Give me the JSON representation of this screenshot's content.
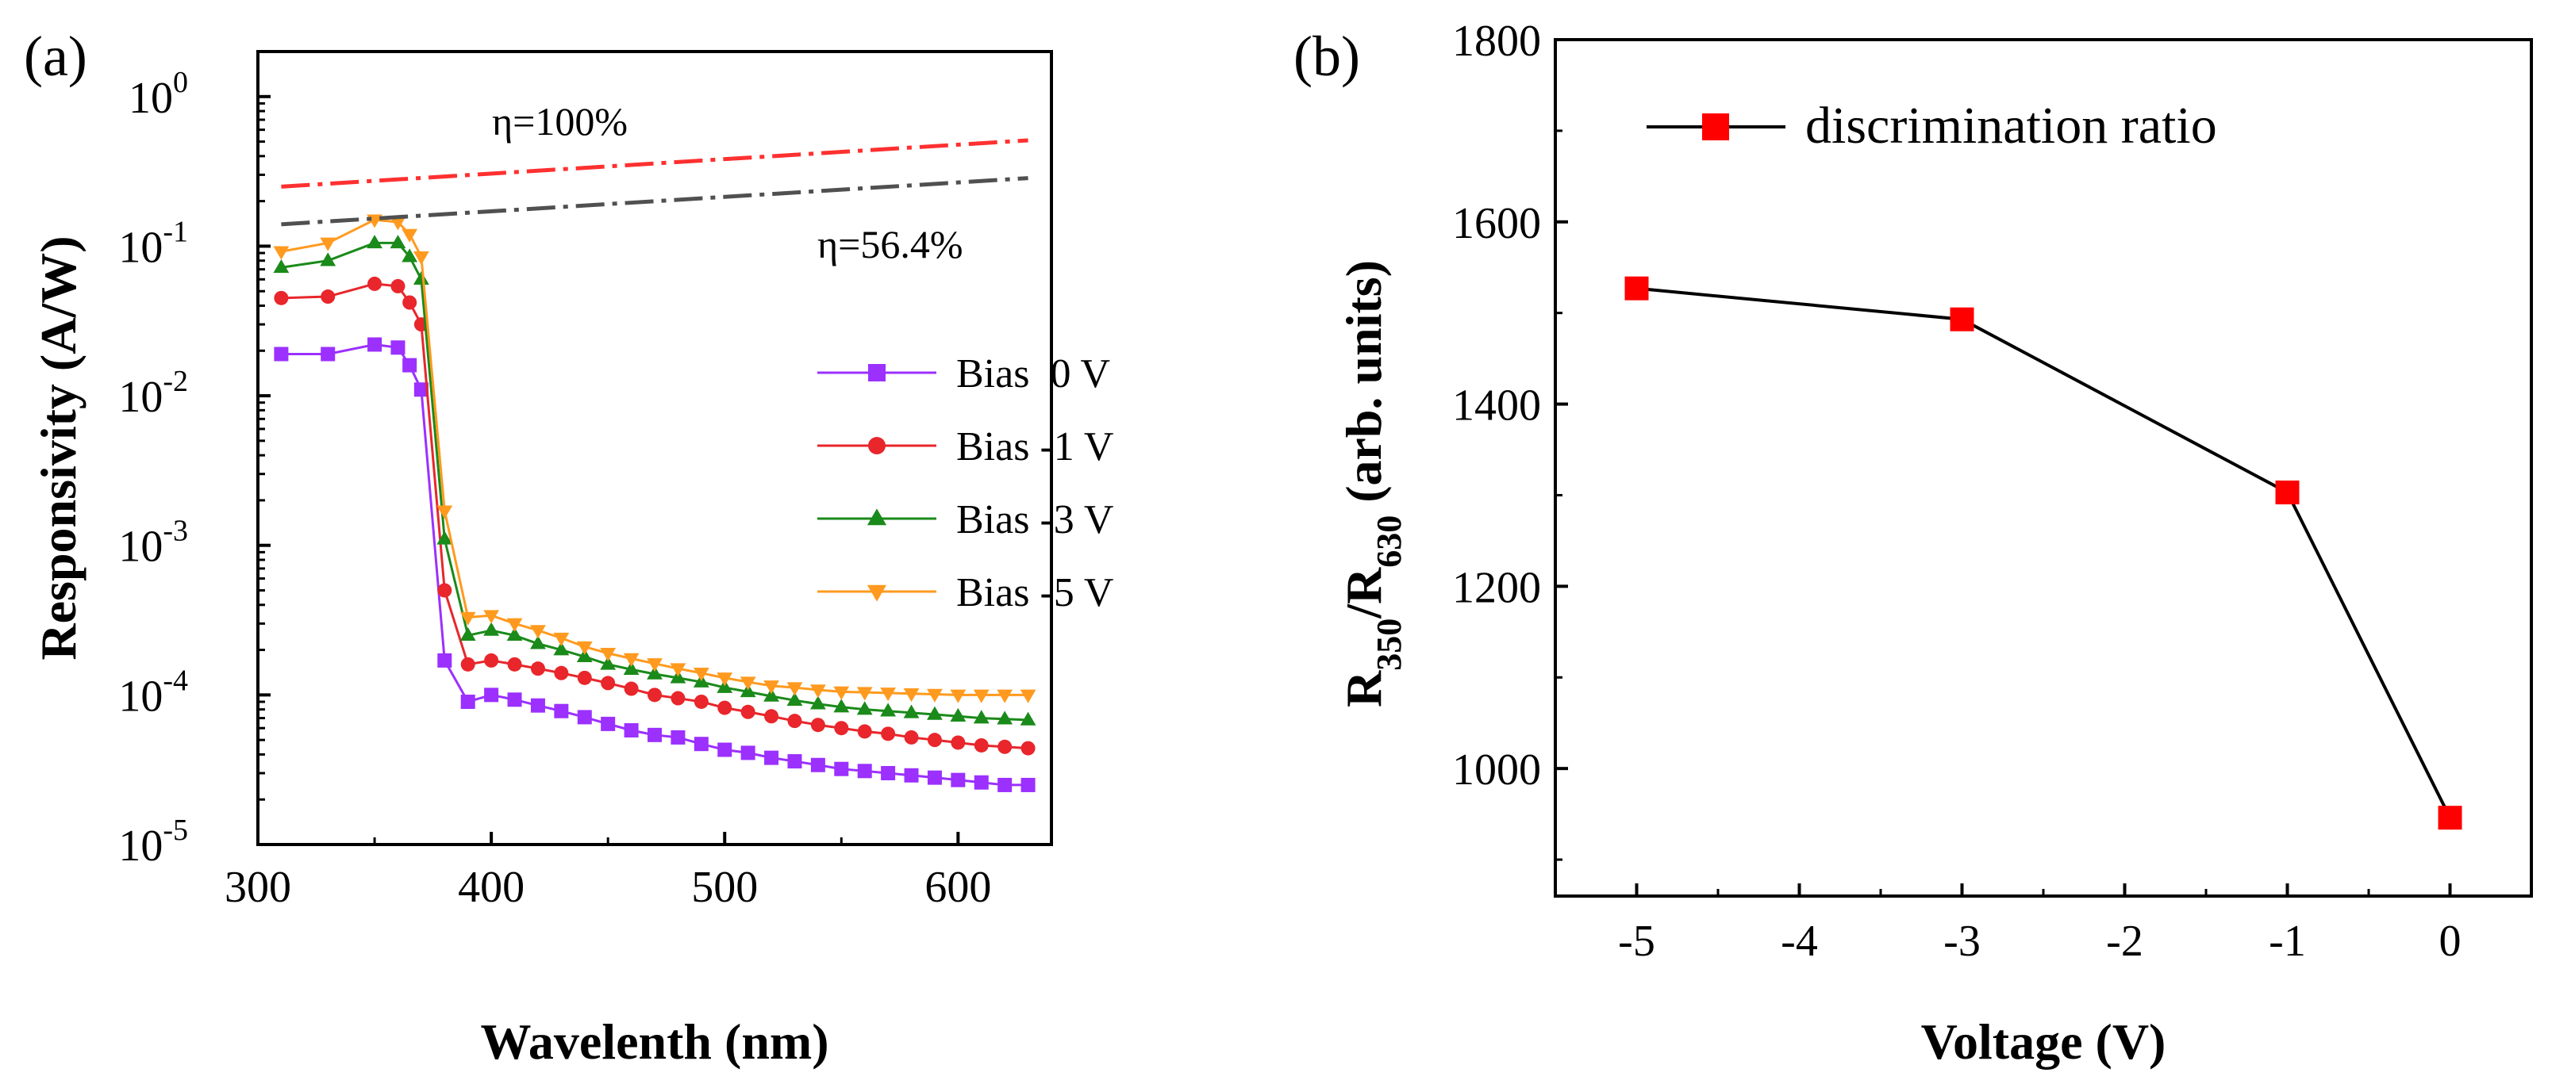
{
  "chart_data": [
    {
      "type": "line",
      "panel_label": "(a)",
      "xlabel": "Wavelenth (nm)",
      "ylabel": "Responsivity (A/W)",
      "yscale": "log",
      "xlim": [
        300,
        640
      ],
      "ylim": [
        1e-05,
        2
      ],
      "x_ticks": [
        {
          "value": 300,
          "label": "300"
        },
        {
          "value": 400,
          "label": "400"
        },
        {
          "value": 500,
          "label": "500"
        },
        {
          "value": 600,
          "label": "600"
        }
      ],
      "y_ticks": [
        {
          "value": 1e-05,
          "base": "10",
          "exp": "-5"
        },
        {
          "value": 0.0001,
          "base": "10",
          "exp": "-4"
        },
        {
          "value": 0.001,
          "base": "10",
          "exp": "-3"
        },
        {
          "value": 0.01,
          "base": "10",
          "exp": "-2"
        },
        {
          "value": 0.1,
          "base": "10",
          "exp": "-1"
        },
        {
          "value": 1,
          "base": "10",
          "exp": "0"
        }
      ],
      "x": [
        310,
        330,
        350,
        360,
        365,
        370,
        380,
        390,
        400,
        410,
        420,
        430,
        440,
        450,
        460,
        470,
        480,
        490,
        500,
        510,
        520,
        530,
        540,
        550,
        560,
        570,
        580,
        590,
        600,
        610,
        620,
        630
      ],
      "series": [
        {
          "name": "Bias  0 V",
          "color": "#9b30ff",
          "marker": "square",
          "values": [
            0.019,
            0.019,
            0.022,
            0.021,
            0.016,
            0.011,
            0.00017,
            9e-05,
            0.0001,
            9.3e-05,
            8.5e-05,
            7.8e-05,
            7.1e-05,
            6.4e-05,
            5.8e-05,
            5.4e-05,
            5.2e-05,
            4.7e-05,
            4.3e-05,
            4.1e-05,
            3.8e-05,
            3.6e-05,
            3.4e-05,
            3.2e-05,
            3.1e-05,
            3e-05,
            2.9e-05,
            2.8e-05,
            2.7e-05,
            2.6e-05,
            2.5e-05,
            2.5e-05
          ]
        },
        {
          "name": "Bias -1 V",
          "color": "#e8262b",
          "marker": "circle",
          "values": [
            0.045,
            0.046,
            0.056,
            0.054,
            0.042,
            0.03,
            0.0005,
            0.00016,
            0.00017,
            0.00016,
            0.00015,
            0.00014,
            0.00013,
            0.00012,
            0.00011,
            0.0001,
            9.5e-05,
            9e-05,
            8.2e-05,
            7.7e-05,
            7.2e-05,
            6.7e-05,
            6.3e-05,
            6e-05,
            5.7e-05,
            5.5e-05,
            5.2e-05,
            5e-05,
            4.8e-05,
            4.6e-05,
            4.5e-05,
            4.4e-05
          ]
        },
        {
          "name": "Bias -3 V",
          "color": "#1a8a1a",
          "marker": "triangle-up",
          "values": [
            0.072,
            0.08,
            0.105,
            0.105,
            0.085,
            0.06,
            0.0011,
            0.00025,
            0.00027,
            0.00025,
            0.00022,
            0.0002,
            0.00018,
            0.00016,
            0.000148,
            0.000138,
            0.00013,
            0.000122,
            0.000112,
            0.000105,
            9.8e-05,
            9.2e-05,
            8.7e-05,
            8.3e-05,
            8e-05,
            7.8e-05,
            7.6e-05,
            7.4e-05,
            7.2e-05,
            7e-05,
            6.9e-05,
            6.8e-05
          ]
        },
        {
          "name": "Bias -5 V",
          "color": "#ff9a1f",
          "marker": "triangle-down",
          "values": [
            0.092,
            0.105,
            0.15,
            0.145,
            0.12,
            0.085,
            0.0017,
            0.00033,
            0.00034,
            0.0003,
            0.00027,
            0.00024,
            0.00021,
            0.00019,
            0.000175,
            0.000162,
            0.00015,
            0.00014,
            0.00013,
            0.000122,
            0.000115,
            0.000112,
            0.000108,
            0.000105,
            0.000104,
            0.000103,
            0.000102,
            0.000101,
            0.0001,
            0.0001,
            0.0001,
            0.0001
          ]
        }
      ],
      "reference_lines": [
        {
          "label": "η=100%",
          "color": "#ff3030",
          "x": [
            310,
            630
          ],
          "values": [
            0.25,
            0.51
          ]
        },
        {
          "label": "η=56.4%",
          "color": "#505050",
          "x": [
            310,
            630
          ],
          "values": [
            0.14,
            0.285
          ]
        }
      ]
    },
    {
      "type": "line",
      "panel_label": "(b)",
      "xlabel": "Voltage (V)",
      "ylabel_main": "R",
      "ylabel_sub1": "350",
      "ylabel_slash": "/R",
      "ylabel_sub2": "630",
      "ylabel_rest": " (arb. units)",
      "xlim": [
        -5.5,
        0.5
      ],
      "ylim": [
        860,
        1800
      ],
      "x_ticks": [
        {
          "value": -5,
          "label": "-5"
        },
        {
          "value": -4,
          "label": "-4"
        },
        {
          "value": -3,
          "label": "-3"
        },
        {
          "value": -2,
          "label": "-2"
        },
        {
          "value": -1,
          "label": "-1"
        },
        {
          "value": 0,
          "label": "0"
        }
      ],
      "y_ticks": [
        {
          "value": 1000,
          "label": "1000"
        },
        {
          "value": 1200,
          "label": "1200"
        },
        {
          "value": 1400,
          "label": "1400"
        },
        {
          "value": 1600,
          "label": "1600"
        },
        {
          "value": 1800,
          "label": "1800"
        }
      ],
      "series": [
        {
          "name": "discrimination ratio",
          "line_color": "#000000",
          "marker_color": "#ff0000",
          "marker": "square",
          "x": [
            -5,
            -3,
            -1,
            0
          ],
          "values": [
            1527,
            1493,
            1303,
            946
          ]
        }
      ]
    }
  ]
}
